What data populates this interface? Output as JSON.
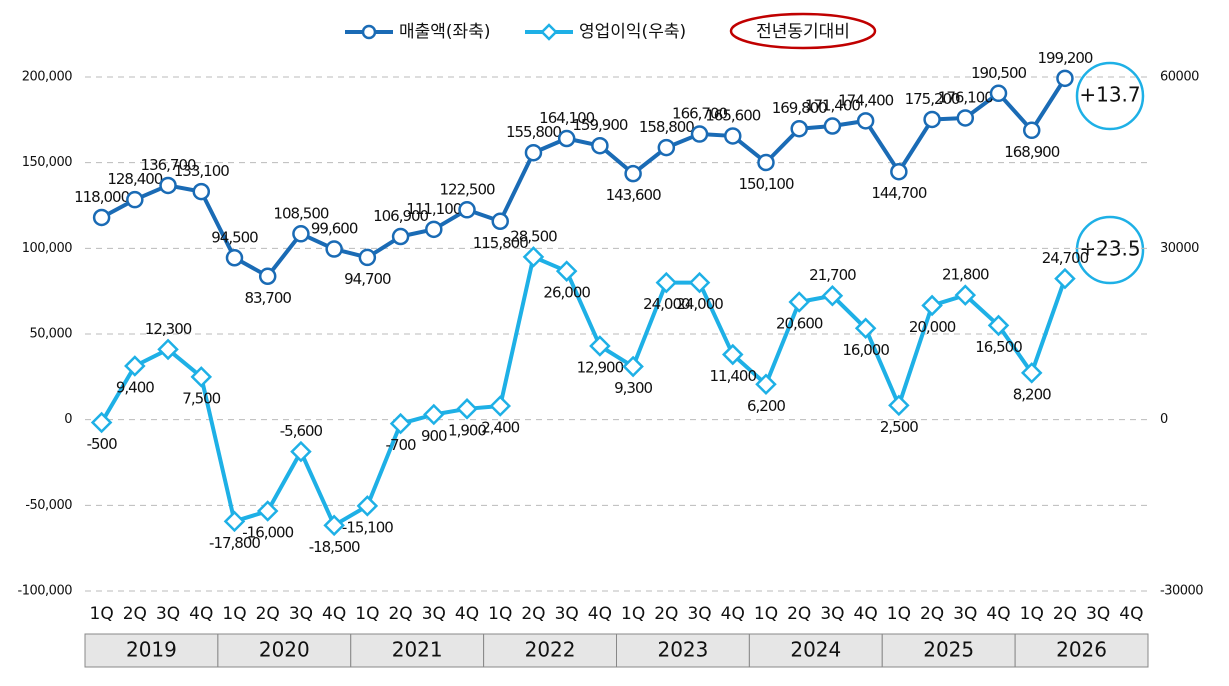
{
  "chart_data": {
    "type": "line",
    "categories": [
      "1Q",
      "2Q",
      "3Q",
      "4Q",
      "1Q",
      "2Q",
      "3Q",
      "4Q",
      "1Q",
      "2Q",
      "3Q",
      "4Q",
      "1Q",
      "2Q",
      "3Q",
      "4Q",
      "1Q",
      "2Q",
      "3Q",
      "4Q",
      "1Q",
      "2Q",
      "3Q",
      "4Q",
      "1Q",
      "2Q",
      "3Q",
      "4Q",
      "1Q",
      "2Q",
      "3Q",
      "4Q"
    ],
    "years": [
      "2019",
      "2020",
      "2021",
      "2022",
      "2023",
      "2024",
      "2025",
      "2026"
    ],
    "series": [
      {
        "name": "매출액(좌축)",
        "color": "#1a6bb5",
        "marker": "circle",
        "values": [
          118000,
          128400,
          136700,
          133100,
          94500,
          83700,
          108500,
          99600,
          94700,
          106900,
          111100,
          122500,
          115800,
          155800,
          164100,
          159900,
          143600,
          158800,
          166700,
          165600,
          150100,
          169800,
          171400,
          174400,
          144700,
          175200,
          176100,
          190500,
          168900,
          199200,
          null,
          null
        ],
        "value_labels": [
          "118,000",
          "128,400",
          "136,700",
          "133,100",
          "94,500",
          "83,700",
          "108,500",
          "99,600",
          "94,700",
          "106,900",
          "111,100",
          "122,500",
          "115,800",
          "155,800",
          "164,100",
          "159,900",
          "143,600",
          "158,800",
          "166,700",
          "165,600",
          "150,100",
          "169,800",
          "171,400",
          "174,400",
          "144,700",
          "175,200",
          "176,100",
          "190,500",
          "168,900",
          "199,200",
          null,
          null
        ]
      },
      {
        "name": "영업이익(우축)",
        "color": "#1eb0e6",
        "marker": "diamond",
        "axis": "y2",
        "values": [
          -500,
          9400,
          12300,
          7500,
          -17800,
          -16000,
          -5600,
          -18500,
          -15100,
          -700,
          900,
          1900,
          2400,
          28500,
          26000,
          12900,
          9300,
          24000,
          24000,
          11400,
          6200,
          20600,
          21700,
          16000,
          2500,
          20000,
          21800,
          16500,
          8200,
          24700,
          null,
          null
        ],
        "value_labels": [
          "-500",
          "9,400",
          "12,300",
          "7,500",
          "-17,800",
          "-16,000",
          "-5,600",
          "-18,500",
          "-15,100",
          "-700",
          "900",
          "1,900",
          "2,400",
          "28,500",
          "26,000",
          "12,900",
          "9,300",
          "24,000",
          "24,000",
          "11,400",
          "6,200",
          "20,600",
          "21,700",
          "16,000",
          "2,500",
          "20,000",
          "21,800",
          "16,500",
          "8,200",
          "24,700",
          null,
          null
        ]
      }
    ],
    "legend_extra": "전년동기대비",
    "annotations": [
      "+13.7",
      "+23.5"
    ],
    "ylim": [
      -100000,
      200000
    ],
    "yticks": [
      {
        "value": -100000,
        "label": "-100,000"
      },
      {
        "value": -50000,
        "label": "-50,000"
      },
      {
        "value": 0,
        "label": "0"
      },
      {
        "value": 50000,
        "label": "50,000"
      },
      {
        "value": 100000,
        "label": "100,000"
      },
      {
        "value": 150000,
        "label": "150,000"
      },
      {
        "value": 200000,
        "label": "200,000"
      }
    ],
    "y2lim": [
      -30000,
      60000
    ],
    "y2ticks": [
      -30000,
      0,
      30000,
      60000
    ],
    "grid": true,
    "legend": "top"
  }
}
